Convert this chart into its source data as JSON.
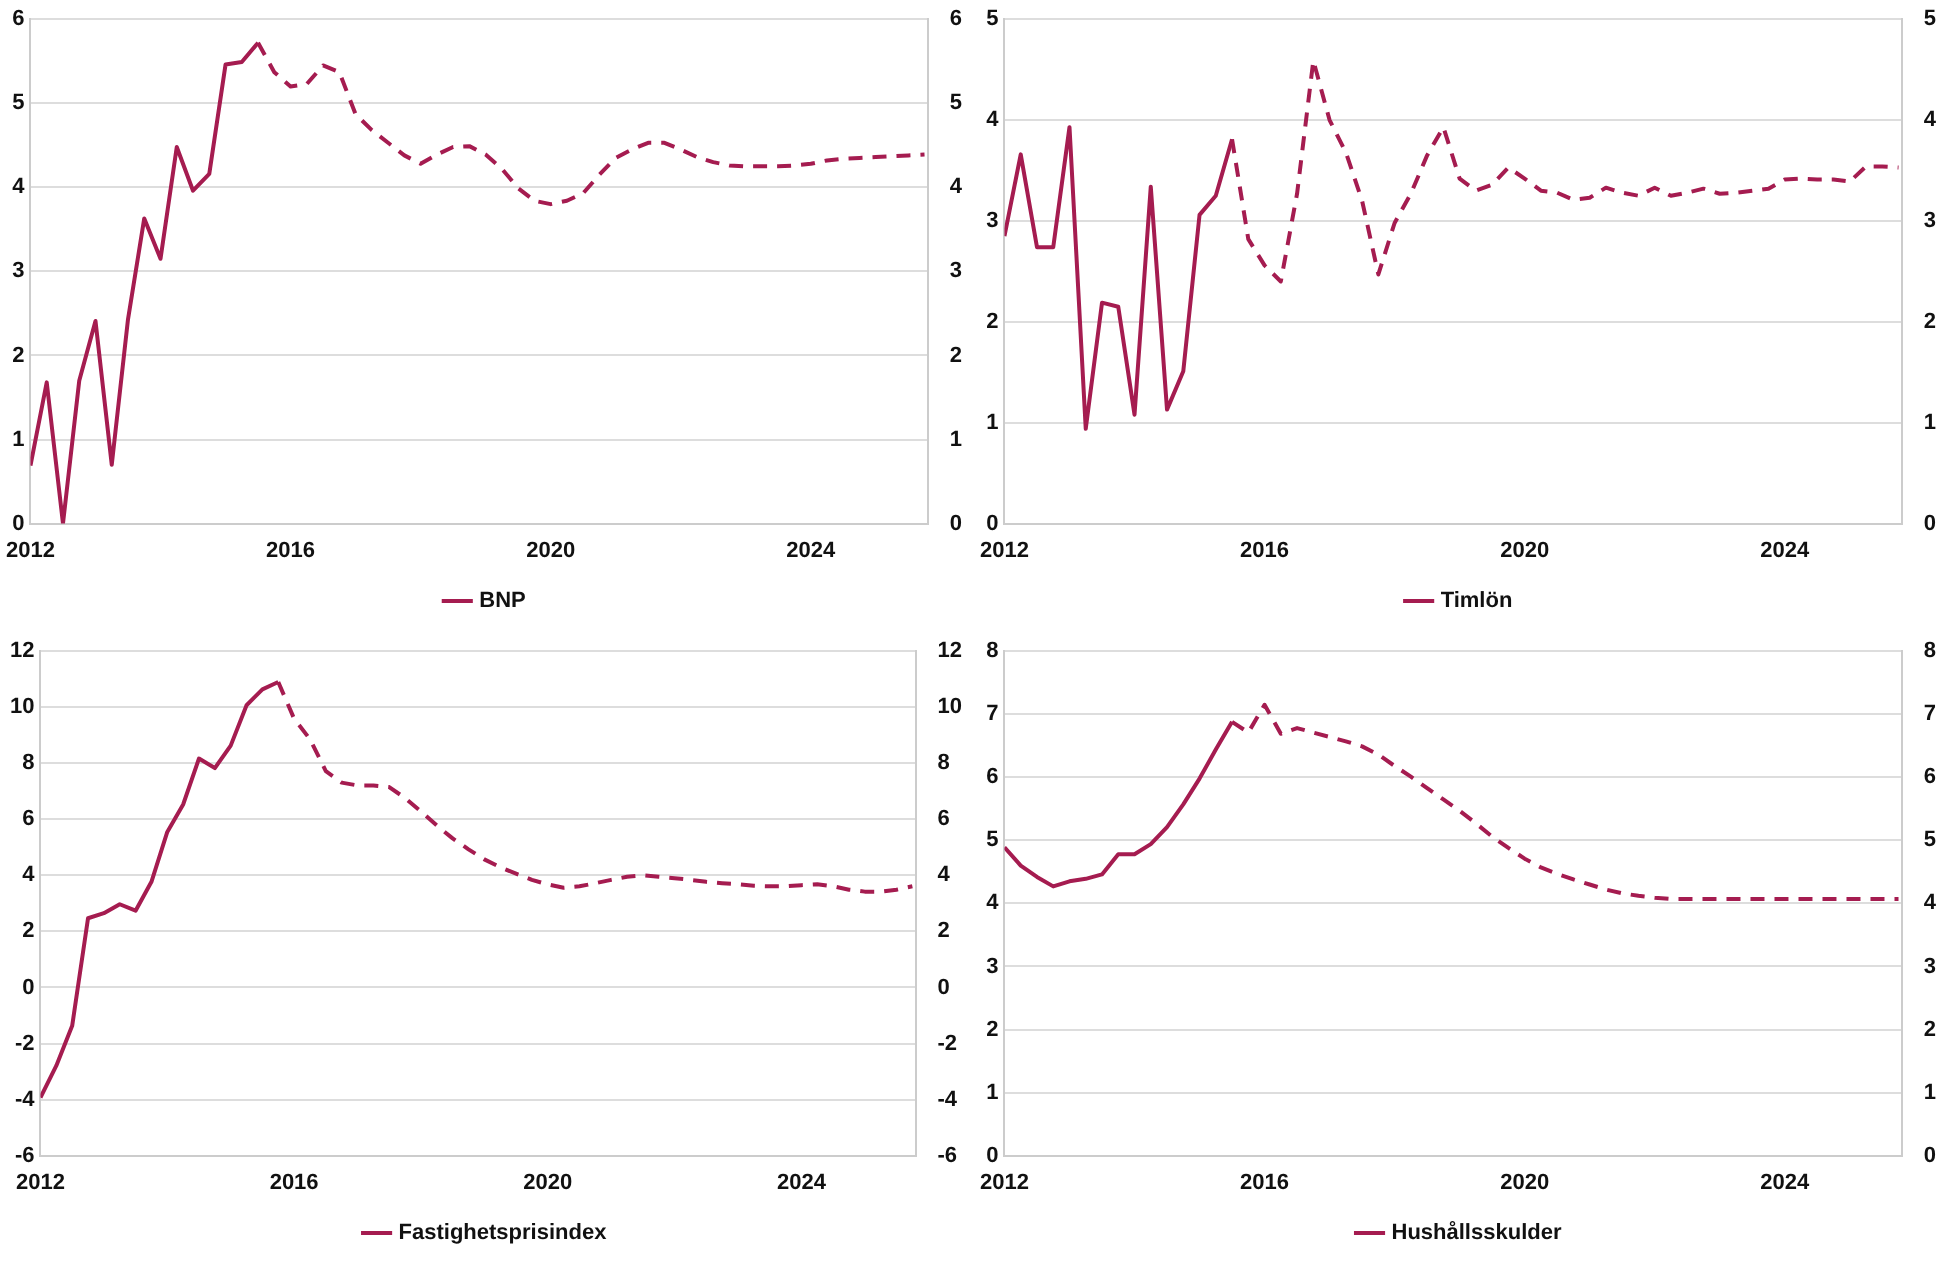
{
  "chart_data": [
    {
      "type": "line",
      "xlim": [
        2012,
        2025.8
      ],
      "xticks": [
        2012,
        2016,
        2020,
        2024
      ],
      "ylim": [
        0,
        6
      ],
      "yticks": [
        0,
        1,
        2,
        3,
        4,
        5,
        6
      ],
      "y2lim": [
        0,
        6
      ],
      "y2ticks": [
        0,
        1,
        2,
        3,
        4,
        5,
        6
      ],
      "grid": "y",
      "legend": "bottom",
      "marker": "none",
      "series": [
        {
          "name": "BNP",
          "color": "#a51c50",
          "line_style": "solid",
          "x": [
            2012,
            2012.25,
            2012.5,
            2012.75,
            2013,
            2013.25,
            2013.5,
            2013.75,
            2014,
            2014.25,
            2014.5,
            2014.75,
            2015,
            2015.25,
            2015.5
          ],
          "values": [
            0.69,
            1.68,
            0,
            1.7,
            2.41,
            0.7,
            2.43,
            3.63,
            3.15,
            4.48,
            3.96,
            4.16,
            5.46,
            5.49,
            5.72
          ]
        },
        {
          "color": "#a51c50",
          "line_style": "dashed",
          "x": [
            2015.5,
            2015.75,
            2016,
            2016.25,
            2016.5,
            2016.75,
            2017,
            2017.25,
            2017.5,
            2017.75,
            2018,
            2018.25,
            2018.5,
            2018.75,
            2019,
            2019.25,
            2019.5,
            2019.75,
            2020,
            2020.25,
            2020.5,
            2020.75,
            2021,
            2021.25,
            2021.5,
            2021.75,
            2022,
            2022.25,
            2022.5,
            2022.75,
            2023,
            2023.25,
            2023.5,
            2023.75,
            2024,
            2024.25,
            2024.5,
            2024.75,
            2025,
            2025.25,
            2025.5,
            2025.75
          ],
          "values": [
            5.72,
            5.37,
            5.2,
            5.23,
            5.45,
            5.37,
            4.87,
            4.68,
            4.53,
            4.38,
            4.28,
            4.39,
            4.48,
            4.49,
            4.39,
            4.22,
            3.99,
            3.84,
            3.8,
            3.84,
            3.93,
            4.15,
            4.35,
            4.45,
            4.53,
            4.53,
            4.45,
            4.36,
            4.3,
            4.26,
            4.25,
            4.25,
            4.25,
            4.26,
            4.28,
            4.32,
            4.34,
            4.35,
            4.36,
            4.37,
            4.38,
            4.39
          ]
        }
      ]
    },
    {
      "type": "line",
      "xlim": [
        2012,
        2025.8
      ],
      "xticks": [
        2012,
        2016,
        2020,
        2024
      ],
      "ylim": [
        0,
        5
      ],
      "yticks": [
        0,
        1,
        2,
        3,
        4,
        5
      ],
      "y2lim": [
        0,
        5
      ],
      "y2ticks": [
        0,
        1,
        2,
        3,
        4,
        5
      ],
      "grid": "y",
      "legend": "bottom",
      "marker": "none",
      "series": [
        {
          "name": "Timlön",
          "color": "#a51c50",
          "line_style": "solid",
          "x": [
            2012,
            2012.25,
            2012.5,
            2012.75,
            2013,
            2013.25,
            2013.5,
            2013.75,
            2014,
            2014.25,
            2014.5,
            2014.75,
            2015,
            2015.25,
            2015.5
          ],
          "values": [
            2.85,
            3.66,
            2.74,
            2.74,
            3.93,
            0.94,
            2.19,
            2.15,
            1.08,
            3.34,
            1.13,
            1.51,
            3.06,
            3.25,
            3.81
          ]
        },
        {
          "color": "#a51c50",
          "line_style": "dashed",
          "x": [
            2015.5,
            2015.75,
            2016,
            2016.25,
            2016.5,
            2016.75,
            2017,
            2017.25,
            2017.5,
            2017.75,
            2018,
            2018.25,
            2018.5,
            2018.75,
            2019,
            2019.25,
            2019.5,
            2019.75,
            2020,
            2020.25,
            2020.5,
            2020.75,
            2021,
            2021.25,
            2021.5,
            2021.75,
            2022,
            2022.25,
            2022.5,
            2022.75,
            2023,
            2023.25,
            2023.5,
            2023.75,
            2024,
            2024.25,
            2024.5,
            2024.75,
            2025,
            2025.25,
            2025.5,
            2025.75
          ],
          "values": [
            3.81,
            2.82,
            2.56,
            2.4,
            3.27,
            4.59,
            4.0,
            3.68,
            3.2,
            2.47,
            2.98,
            3.27,
            3.65,
            3.93,
            3.42,
            3.3,
            3.36,
            3.53,
            3.42,
            3.3,
            3.28,
            3.21,
            3.23,
            3.33,
            3.28,
            3.25,
            3.33,
            3.25,
            3.28,
            3.32,
            3.27,
            3.28,
            3.3,
            3.32,
            3.41,
            3.42,
            3.41,
            3.41,
            3.39,
            3.54,
            3.54,
            3.53
          ]
        }
      ]
    },
    {
      "type": "line",
      "xlim": [
        2012,
        2025.8
      ],
      "xticks": [
        2012,
        2016,
        2020,
        2024
      ],
      "ylim": [
        -6,
        12
      ],
      "yticks": [
        -6,
        -4,
        -2,
        0,
        2,
        4,
        6,
        8,
        10,
        12
      ],
      "y2lim": [
        -6,
        12
      ],
      "y2ticks": [
        -6,
        -4,
        -2,
        0,
        2,
        4,
        6,
        8,
        10,
        12
      ],
      "grid": "y",
      "legend": "bottom",
      "marker": "none",
      "series": [
        {
          "name": "Fastighetsprisindex",
          "color": "#a51c50",
          "line_style": "solid",
          "x": [
            2012,
            2012.25,
            2012.5,
            2012.75,
            2013,
            2013.25,
            2013.5,
            2013.75,
            2014,
            2014.25,
            2014.5,
            2014.75,
            2015,
            2015.25,
            2015.5,
            2015.75
          ],
          "values": [
            -3.93,
            -2.79,
            -1.37,
            2.47,
            2.65,
            2.97,
            2.74,
            3.77,
            5.55,
            6.53,
            8.17,
            7.83,
            8.63,
            10.07,
            10.64,
            10.9
          ]
        },
        {
          "color": "#a51c50",
          "line_style": "dashed",
          "x": [
            2015.75,
            2016,
            2016.25,
            2016.5,
            2016.75,
            2017,
            2017.25,
            2017.5,
            2017.75,
            2018,
            2018.25,
            2018.5,
            2018.75,
            2019,
            2019.25,
            2019.5,
            2019.75,
            2020,
            2020.25,
            2020.5,
            2020.75,
            2021,
            2021.25,
            2021.5,
            2021.75,
            2022,
            2022.25,
            2022.5,
            2022.75,
            2023,
            2023.25,
            2023.5,
            2023.75,
            2024,
            2024.25,
            2024.5,
            2024.75,
            2025,
            2025.25,
            2025.5,
            2025.75
          ],
          "values": [
            10.9,
            9.59,
            8.86,
            7.72,
            7.31,
            7.21,
            7.21,
            7.15,
            6.76,
            6.28,
            5.78,
            5.32,
            4.93,
            4.57,
            4.29,
            4.06,
            3.84,
            3.68,
            3.56,
            3.61,
            3.72,
            3.84,
            3.95,
            4.0,
            3.95,
            3.9,
            3.84,
            3.77,
            3.72,
            3.68,
            3.63,
            3.61,
            3.61,
            3.65,
            3.68,
            3.61,
            3.49,
            3.42,
            3.42,
            3.49,
            3.61
          ]
        }
      ]
    },
    {
      "type": "line",
      "xlim": [
        2012,
        2025.8
      ],
      "xticks": [
        2012,
        2016,
        2020,
        2024
      ],
      "ylim": [
        0,
        8
      ],
      "yticks": [
        0,
        1,
        2,
        3,
        4,
        5,
        6,
        7,
        8
      ],
      "y2lim": [
        0,
        8
      ],
      "y2ticks": [
        0,
        1,
        2,
        3,
        4,
        5,
        6,
        7,
        8
      ],
      "grid": "y",
      "legend": "bottom",
      "marker": "none",
      "series": [
        {
          "name": "Hushållsskulder",
          "color": "#a51c50",
          "line_style": "solid",
          "x": [
            2012,
            2012.25,
            2012.5,
            2012.75,
            2013,
            2013.25,
            2013.5,
            2013.75,
            2014,
            2014.25,
            2014.5,
            2014.75,
            2015,
            2015.25,
            2015.5
          ],
          "values": [
            4.89,
            4.6,
            4.42,
            4.27,
            4.35,
            4.39,
            4.46,
            4.78,
            4.78,
            4.94,
            5.21,
            5.57,
            5.98,
            6.44,
            6.88
          ]
        },
        {
          "color": "#a51c50",
          "line_style": "dashed",
          "x": [
            2015.5,
            2015.75,
            2016,
            2016.25,
            2016.5,
            2016.75,
            2017,
            2017.25,
            2017.5,
            2017.75,
            2018,
            2018.25,
            2018.5,
            2018.75,
            2019,
            2019.25,
            2019.5,
            2019.75,
            2020,
            2020.25,
            2020.5,
            2020.75,
            2021,
            2021.25,
            2021.5,
            2021.75,
            2022,
            2022.25,
            2022.5,
            2022.75,
            2023,
            2023.25,
            2023.5,
            2023.75,
            2024,
            2024.25,
            2024.5,
            2024.75,
            2025,
            2025.25,
            2025.5,
            2025.75
          ],
          "values": [
            6.88,
            6.71,
            7.15,
            6.69,
            6.78,
            6.71,
            6.64,
            6.57,
            6.49,
            6.36,
            6.18,
            6.01,
            5.83,
            5.65,
            5.47,
            5.27,
            5.06,
            4.88,
            4.71,
            4.57,
            4.47,
            4.38,
            4.3,
            4.22,
            4.16,
            4.12,
            4.09,
            4.07,
            4.07,
            4.07,
            4.07,
            4.07,
            4.07,
            4.07,
            4.07,
            4.07,
            4.07,
            4.07,
            4.07,
            4.07,
            4.07,
            4.07
          ]
        }
      ]
    }
  ]
}
